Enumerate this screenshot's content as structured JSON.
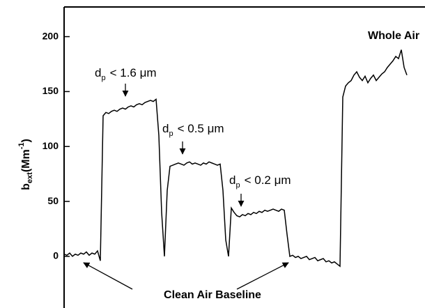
{
  "chart_data": {
    "type": "line",
    "y_label": [
      "b",
      "ext",
      "(Mm",
      "-1",
      ")"
    ],
    "annotations": [
      {
        "parts": [
          "d",
          "p",
          "< 1.6 μm"
        ]
      },
      {
        "parts": [
          "d",
          "p",
          "< 0.5 μm"
        ]
      },
      {
        "parts": [
          "d",
          "p",
          "< 0.2 μm"
        ]
      },
      {
        "parts": [
          "Whole Air"
        ]
      },
      {
        "parts": [
          "Clean Air Baseline"
        ]
      }
    ],
    "color": "#000000",
    "ylim": [
      -47,
      227
    ],
    "yticks": [
      0,
      50,
      100,
      150,
      200
    ],
    "values": [
      2,
      1,
      3,
      0,
      2,
      1,
      3,
      2,
      4,
      1,
      3,
      2,
      5,
      -4,
      128,
      131,
      130,
      132,
      133,
      132,
      134,
      135,
      134,
      136,
      137,
      136,
      138,
      139,
      138,
      140,
      141,
      142,
      141,
      143,
      110,
      40,
      0,
      60,
      82,
      83,
      84,
      85,
      84,
      83,
      85,
      86,
      84,
      85,
      84,
      83,
      85,
      84,
      86,
      85,
      84,
      83,
      84,
      60,
      15,
      0,
      44,
      40,
      37,
      36,
      38,
      37,
      39,
      38,
      40,
      39,
      41,
      40,
      42,
      41,
      42,
      43,
      42,
      41,
      43,
      42,
      20,
      0,
      1,
      -1,
      0,
      -2,
      -1,
      0,
      -3,
      -2,
      -1,
      -4,
      -3,
      -2,
      -5,
      -4,
      -6,
      -5,
      -7,
      -9,
      145,
      155,
      158,
      160,
      165,
      168,
      163,
      160,
      164,
      158,
      162,
      165,
      160,
      163,
      166,
      168,
      172,
      175,
      178,
      182,
      180,
      188,
      172,
      165
    ]
  }
}
